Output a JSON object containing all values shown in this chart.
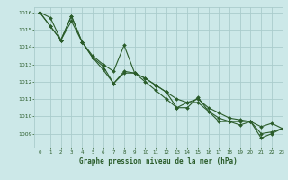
{
  "title": "Graphe pression niveau de la mer (hPa)",
  "background_color": "#cce8e8",
  "grid_color": "#aacccc",
  "line_color": "#2a5c2a",
  "xlim": [
    -0.5,
    23
  ],
  "ylim": [
    1008.2,
    1016.3
  ],
  "yticks": [
    1009,
    1010,
    1011,
    1012,
    1013,
    1014,
    1015,
    1016
  ],
  "xticks": [
    0,
    1,
    2,
    3,
    4,
    5,
    6,
    7,
    8,
    9,
    10,
    11,
    12,
    13,
    14,
    15,
    16,
    17,
    18,
    19,
    20,
    21,
    22,
    23
  ],
  "series1": [
    1016.0,
    1015.7,
    1014.4,
    1015.8,
    1014.3,
    1013.5,
    1013.0,
    1012.6,
    1014.1,
    1012.5,
    1012.2,
    1011.8,
    1011.4,
    1011.0,
    1010.8,
    1011.0,
    1010.5,
    1010.2,
    1009.9,
    1009.8,
    1009.7,
    1009.4,
    1009.6,
    1009.3
  ],
  "series2": [
    1016.0,
    1015.2,
    1014.4,
    1015.8,
    1014.3,
    1013.4,
    1012.9,
    1011.9,
    1012.6,
    1012.5,
    1012.2,
    1011.8,
    1011.4,
    1010.5,
    1010.8,
    1010.8,
    1010.3,
    1009.9,
    1009.7,
    1009.5,
    1009.7,
    1009.0,
    1009.1,
    1009.3
  ],
  "series3": [
    1016.0,
    1015.2,
    1014.4,
    1015.5,
    1014.3,
    1013.4,
    1012.7,
    1011.9,
    1012.5,
    1012.5,
    1012.0,
    1011.5,
    1011.0,
    1010.5,
    1010.5,
    1011.1,
    1010.3,
    1009.7,
    1009.7,
    1009.7,
    1009.7,
    1008.75,
    1009.0,
    1009.3
  ]
}
